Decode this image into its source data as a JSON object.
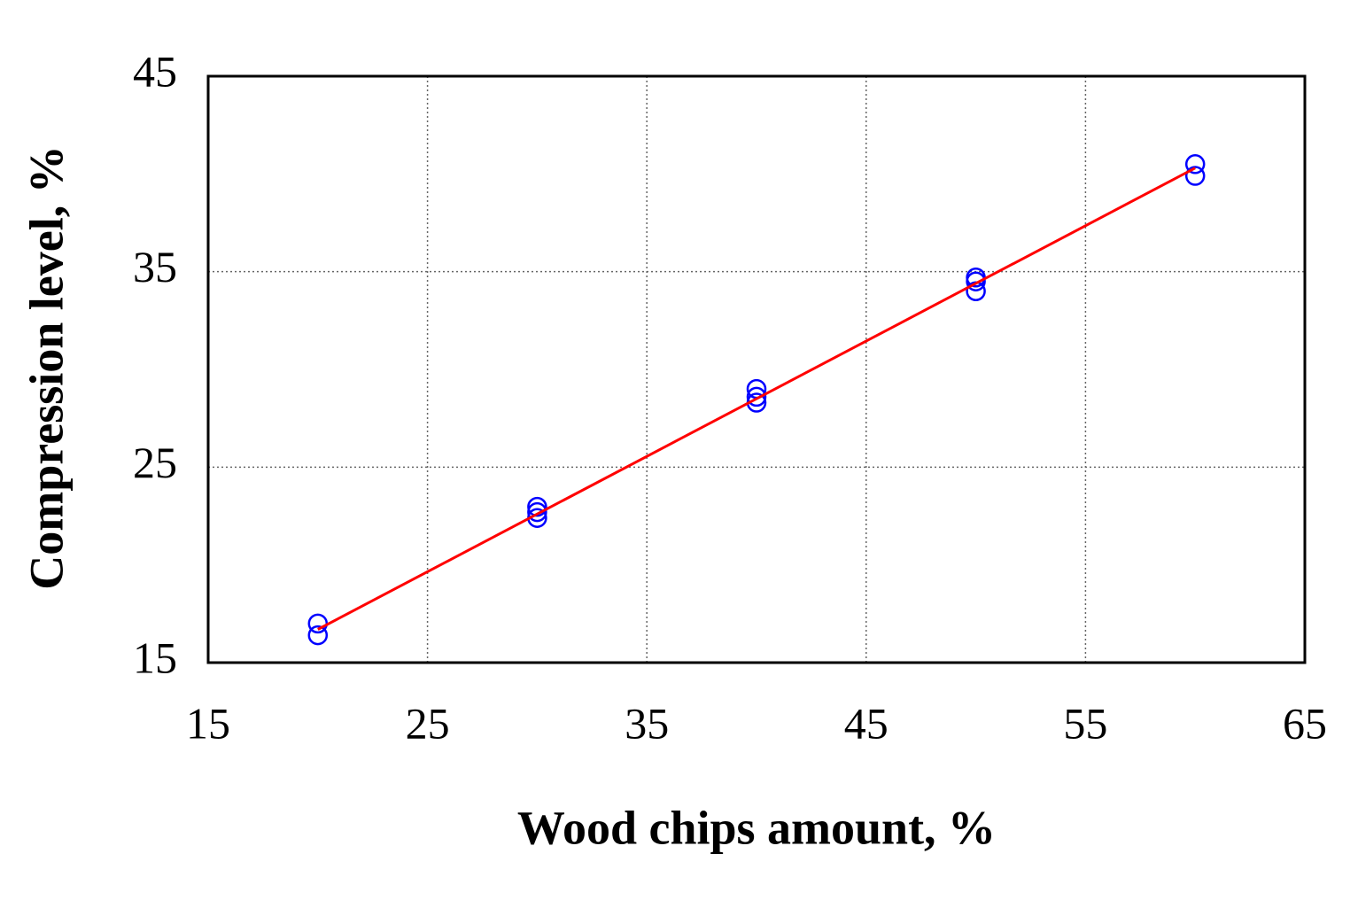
{
  "chart_data": {
    "type": "scatter",
    "x_label": "Wood chips amount, %",
    "y_label": "Compression level, %",
    "xlim": [
      15,
      65
    ],
    "xticks": [
      15,
      25,
      35,
      45,
      55,
      65
    ],
    "ylim": [
      15,
      45
    ],
    "yticks": [
      15,
      25,
      35,
      45
    ],
    "grid": true,
    "series": [
      {
        "kind": "markers",
        "color": "#0000ff",
        "x": [
          20,
          20,
          30,
          30,
          30,
          40,
          40,
          40,
          50,
          50,
          50,
          60,
          60
        ],
        "values": [
          17.0,
          16.4,
          22.97,
          22.7,
          22.4,
          29.0,
          28.6,
          28.3,
          34.7,
          34.5,
          34.0,
          40.5,
          39.9
        ]
      },
      {
        "kind": "line",
        "color": "#ff0000",
        "x": [
          20,
          60
        ],
        "values": [
          16.7,
          40.3
        ]
      }
    ]
  }
}
